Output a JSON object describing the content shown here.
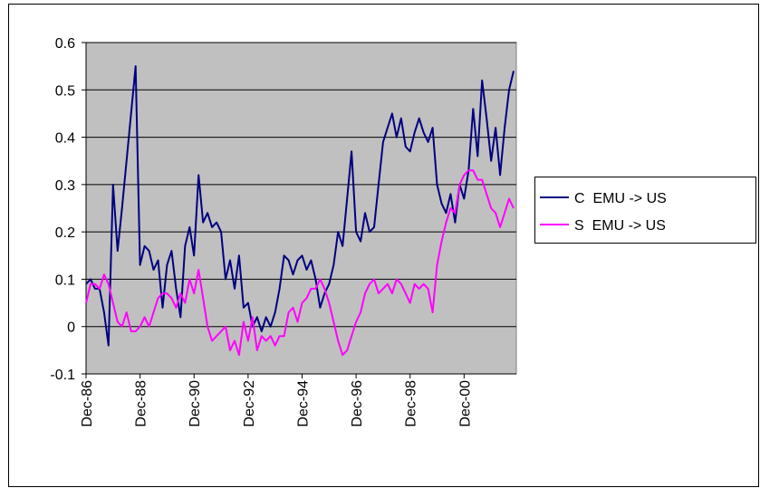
{
  "chart_data": {
    "type": "line",
    "categories": [
      "Dec-86",
      null,
      null,
      null,
      null,
      null,
      null,
      null,
      null,
      null,
      null,
      null,
      "Dec-88",
      null,
      null,
      null,
      null,
      null,
      null,
      null,
      null,
      null,
      null,
      null,
      "Dec-90",
      null,
      null,
      null,
      null,
      null,
      null,
      null,
      null,
      null,
      null,
      null,
      "Dec-92",
      null,
      null,
      null,
      null,
      null,
      null,
      null,
      null,
      null,
      null,
      null,
      "Dec-94",
      null,
      null,
      null,
      null,
      null,
      null,
      null,
      null,
      null,
      null,
      null,
      "Dec-96",
      null,
      null,
      null,
      null,
      null,
      null,
      null,
      null,
      null,
      null,
      null,
      "Dec-98",
      null,
      null,
      null,
      null,
      null,
      null,
      null,
      null,
      null,
      null,
      null,
      "Dec-00",
      null,
      null,
      null,
      null,
      null,
      null,
      null,
      null,
      null,
      null,
      null
    ],
    "series": [
      {
        "name": "C  EMU -> US",
        "color": "#000080",
        "values": [
          0.09,
          0.1,
          0.08,
          0.08,
          0.03,
          -0.04,
          0.3,
          0.16,
          0.25,
          0.35,
          0.45,
          0.55,
          0.13,
          0.17,
          0.16,
          0.12,
          0.14,
          0.04,
          0.13,
          0.16,
          0.08,
          0.02,
          0.17,
          0.21,
          0.15,
          0.32,
          0.22,
          0.24,
          0.21,
          0.22,
          0.2,
          0.1,
          0.14,
          0.08,
          0.15,
          0.04,
          0.05,
          0.0,
          0.02,
          -0.01,
          0.02,
          0.0,
          0.03,
          0.08,
          0.15,
          0.14,
          0.11,
          0.14,
          0.15,
          0.12,
          0.14,
          0.1,
          0.04,
          0.07,
          0.09,
          0.13,
          0.2,
          0.17,
          0.27,
          0.37,
          0.2,
          0.18,
          0.24,
          0.2,
          0.21,
          0.3,
          0.39,
          0.42,
          0.45,
          0.4,
          0.44,
          0.38,
          0.37,
          0.41,
          0.44,
          0.41,
          0.39,
          0.42,
          0.3,
          0.26,
          0.24,
          0.28,
          0.22,
          0.3,
          0.27,
          0.33,
          0.46,
          0.36,
          0.52,
          0.44,
          0.35,
          0.42,
          0.32,
          0.42,
          0.5,
          0.54
        ]
      },
      {
        "name": "S  EMU -> US",
        "color": "#ff00ff",
        "values": [
          0.05,
          0.09,
          0.09,
          0.08,
          0.11,
          0.09,
          0.05,
          0.01,
          0.0,
          0.03,
          -0.01,
          -0.01,
          0.0,
          0.02,
          0.0,
          0.03,
          0.06,
          0.07,
          0.07,
          0.06,
          0.04,
          0.07,
          0.05,
          0.1,
          0.07,
          0.12,
          0.06,
          0.0,
          -0.03,
          -0.02,
          -0.01,
          0.0,
          -0.05,
          -0.03,
          -0.06,
          0.01,
          -0.03,
          0.02,
          -0.05,
          -0.02,
          -0.03,
          -0.02,
          -0.04,
          -0.02,
          -0.02,
          0.03,
          0.04,
          0.01,
          0.05,
          0.06,
          0.08,
          0.08,
          0.1,
          0.08,
          0.05,
          0.01,
          -0.03,
          -0.06,
          -0.05,
          -0.02,
          0.01,
          0.03,
          0.07,
          0.09,
          0.1,
          0.07,
          0.08,
          0.09,
          0.07,
          0.1,
          0.09,
          0.07,
          0.05,
          0.09,
          0.08,
          0.09,
          0.08,
          0.03,
          0.13,
          0.18,
          0.22,
          0.25,
          0.24,
          0.3,
          0.32,
          0.33,
          0.33,
          0.31,
          0.31,
          0.28,
          0.25,
          0.24,
          0.21,
          0.24,
          0.27,
          0.25
        ]
      }
    ],
    "ylim": [
      -0.1,
      0.6
    ],
    "yticks": [
      -0.1,
      0,
      0.1,
      0.2,
      0.3,
      0.4,
      0.5,
      0.6
    ],
    "grid": true,
    "plot_background": "#c0c0c0",
    "legend": "right"
  }
}
